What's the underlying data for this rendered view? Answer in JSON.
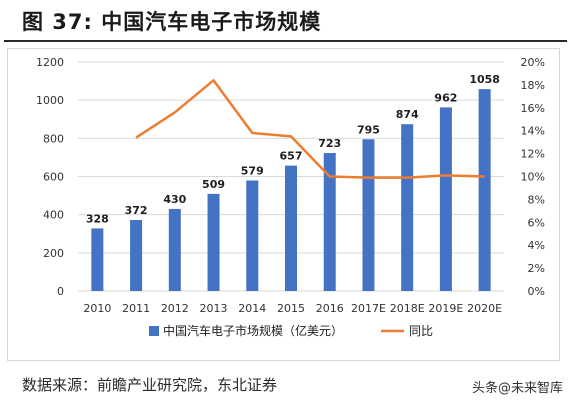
{
  "figure": {
    "title": "图  37:  中国汽车电子市场规模",
    "source": "数据来源：前瞻产业研究院，东北证券",
    "watermark": "头条@未来智库"
  },
  "colors": {
    "bar": "#4472C4",
    "line": "#ED7D31",
    "grid": "#d9d9d9"
  },
  "chart_data": {
    "type": "bar",
    "categories": [
      "2010",
      "2011",
      "2012",
      "2013",
      "2014",
      "2015",
      "2016",
      "2017E",
      "2018E",
      "2019E",
      "2020E"
    ],
    "series": [
      {
        "name": "中国汽车电子市场规模（亿美元）",
        "type": "bar",
        "axis": "left",
        "values": [
          328,
          372,
          430,
          509,
          579,
          657,
          723,
          795,
          874,
          962,
          1058
        ],
        "data_labels": [
          "328",
          "372",
          "430",
          "509",
          "579",
          "657",
          "723",
          "795",
          "874",
          "962",
          "1058"
        ]
      },
      {
        "name": "同比",
        "type": "line",
        "axis": "right",
        "values": [
          null,
          13.4,
          15.6,
          18.4,
          13.8,
          13.5,
          10.0,
          9.9,
          9.9,
          10.1,
          10.0
        ]
      }
    ],
    "y_left": {
      "ylim": [
        0,
        1200
      ],
      "ticks": [
        0,
        200,
        400,
        600,
        800,
        1000,
        1200
      ],
      "tick_labels": [
        "0",
        "200",
        "400",
        "600",
        "800",
        "1000",
        "1200"
      ]
    },
    "y_right": {
      "ylim": [
        0,
        20
      ],
      "ticks": [
        0,
        2,
        4,
        6,
        8,
        10,
        12,
        14,
        16,
        18,
        20
      ],
      "tick_labels": [
        "0%",
        "2%",
        "4%",
        "6%",
        "8%",
        "10%",
        "12%",
        "14%",
        "16%",
        "18%",
        "20%"
      ]
    },
    "grid": true,
    "legend_position": "bottom"
  }
}
